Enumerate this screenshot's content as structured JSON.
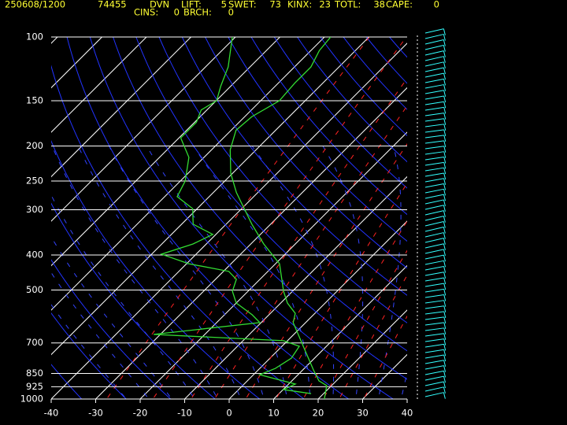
{
  "chart_data": {
    "type": "skewt",
    "header": {
      "time": "250608/1200",
      "station_number": "74455",
      "station": "DVN",
      "indices_row1": [
        {
          "label": "LIFT:",
          "value": 5
        },
        {
          "label": "SWET:",
          "value": 73
        },
        {
          "label": "KINX:",
          "value": 23
        },
        {
          "label": "TOTL:",
          "value": 38
        },
        {
          "label": "CAPE:",
          "value": 0
        }
      ],
      "indices_row2": [
        {
          "label": "CINS:",
          "value": 0
        },
        {
          "label": "BRCH:",
          "value": 0
        }
      ]
    },
    "xlim": [
      -40,
      40
    ],
    "xticks": [
      -40,
      -30,
      -20,
      -10,
      0,
      10,
      20,
      30,
      40
    ],
    "ylim": [
      1000,
      100
    ],
    "yticks": [
      100,
      150,
      200,
      250,
      300,
      400,
      500,
      700,
      850,
      925,
      1000
    ],
    "log_y": true,
    "grid": true,
    "series": [
      {
        "color": "#33dd33",
        "pressure": [
          1000,
          918,
          891,
          831,
          715,
          615,
          580,
          543,
          504,
          423,
          373,
          329,
          269,
          238,
          205,
          181,
          166,
          150,
          134,
          121,
          109,
          100
        ],
        "temperature": [
          21.4,
          18.9,
          16.1,
          12.4,
          4.8,
          -2.8,
          -4.4,
          -8.5,
          -12,
          -19.1,
          -27.1,
          -34.2,
          -44.8,
          -50.4,
          -55.8,
          -58.9,
          -58.4,
          -55.8,
          -56.3,
          -56.3,
          -58.1,
          -58.6
        ]
      },
      {
        "color": "#33dd33",
        "pressure": [
          966,
          942,
          909,
          857,
          823,
          771,
          715,
          690,
          663,
          615,
          585,
          543,
          504,
          467,
          444,
          423,
          398,
          373,
          351,
          329,
          298,
          276,
          250,
          215,
          190,
          172,
          159,
          150,
          137,
          121,
          100
        ],
        "temperature": [
          17.2,
          10.1,
          11.5,
          1.4,
          3.5,
          4.8,
          3.9,
          -0.9,
          -31.5,
          -10.3,
          -13.8,
          -20,
          -23.5,
          -25.3,
          -28.8,
          -39.5,
          -47.8,
          -43,
          -40.7,
          -47.4,
          -51,
          -57.2,
          -58.9,
          -63.4,
          -69.6,
          -69.6,
          -71.3,
          -69.9,
          -72.2,
          -74.9,
          -80.7
        ]
      }
    ]
  }
}
